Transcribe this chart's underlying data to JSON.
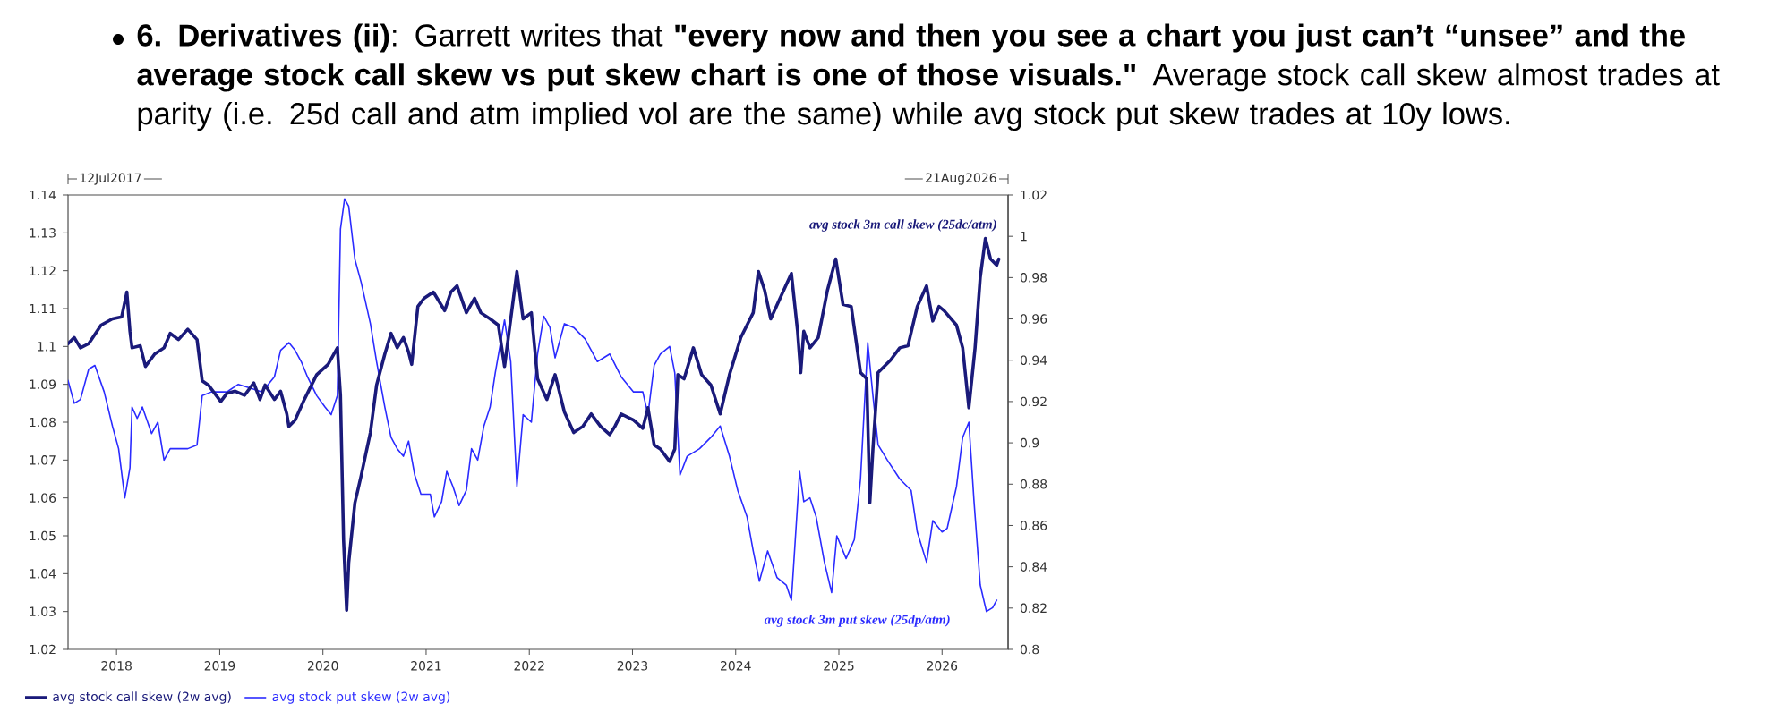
{
  "chart_data": {
    "type": "line",
    "title": "**6. Derivatives (ii)**: Garrett writes that **\"every now and then you see a chart you just can’t “unsee” and the average stock call skew vs put skew chart is one of those visuals.\"** Average stock call skew almost trades at parity (i.e. 25d call and atm implied vol are the same) while avg stock put skew trades at 10y lows.",
    "xlim": [
      2017.53,
      2026.64
    ],
    "xticks": [
      2018,
      2019,
      2020,
      2021,
      2022,
      2023,
      2024,
      2025,
      2026
    ],
    "ylim": [
      1.02,
      1.14
    ],
    "yticks": [
      1.02,
      1.03,
      1.04,
      1.05,
      1.06,
      1.07,
      1.08,
      1.09,
      1.1,
      1.11,
      1.12,
      1.13,
      1.14
    ],
    "y2lim": [
      0.8,
      1.02
    ],
    "y2ticks": [
      0.8,
      0.82,
      0.84,
      0.86,
      0.88,
      0.9,
      0.92,
      0.94,
      0.96,
      0.98,
      1,
      1.02
    ],
    "legend": "bottom",
    "annotations": [
      "12Jul2017",
      "21Aug2026",
      "avg stock 3m call skew (25dc/atm)",
      "avg stock 3m put skew (25dp/atm)"
    ],
    "series": [
      {
        "name": "avg stock call skew (2w avg)",
        "color": "#1a1a7a",
        "axis": "y2",
        "x": [
          2017.53,
          2017.59,
          2017.65,
          2017.73,
          2017.85,
          2017.96,
          2018.05,
          2018.1,
          2018.13,
          2018.15,
          2018.23,
          2018.28,
          2018.37,
          2018.46,
          2018.52,
          2018.6,
          2018.69,
          2018.78,
          2018.83,
          2018.89,
          2019.01,
          2019.07,
          2019.15,
          2019.24,
          2019.33,
          2019.39,
          2019.44,
          2019.53,
          2019.59,
          2019.65,
          2019.67,
          2019.73,
          2019.82,
          2019.94,
          2020.05,
          2020.14,
          2020.17,
          2020.2,
          2020.23,
          2020.25,
          2020.31,
          2020.37,
          2020.46,
          2020.52,
          2020.6,
          2020.66,
          2020.72,
          2020.78,
          2020.83,
          2020.86,
          2020.92,
          2020.98,
          2021.07,
          2021.18,
          2021.24,
          2021.3,
          2021.39,
          2021.47,
          2021.53,
          2021.62,
          2021.7,
          2021.76,
          2021.82,
          2021.88,
          2021.94,
          2022.02,
          2022.08,
          2022.17,
          2022.25,
          2022.34,
          2022.43,
          2022.52,
          2022.6,
          2022.69,
          2022.78,
          2022.83,
          2022.89,
          2023.01,
          2023.1,
          2023.15,
          2023.21,
          2023.27,
          2023.36,
          2023.41,
          2023.44,
          2023.5,
          2023.59,
          2023.67,
          2023.76,
          2023.85,
          2023.94,
          2024.05,
          2024.17,
          2024.22,
          2024.28,
          2024.34,
          2024.43,
          2024.54,
          2024.6,
          2024.63,
          2024.66,
          2024.72,
          2024.8,
          2024.89,
          2024.97,
          2025.04,
          2025.12,
          2025.21,
          2025.27,
          2025.3,
          2025.33,
          2025.38,
          2025.5,
          2025.59,
          2025.67,
          2025.76,
          2025.85,
          2025.91,
          2025.97,
          2026.02,
          2026.14,
          2026.2,
          2026.26,
          2026.32,
          2026.37,
          2026.42,
          2026.47,
          2026.53,
          2026.55
        ],
        "values": [
          0.948,
          0.951,
          0.946,
          0.948,
          0.957,
          0.96,
          0.961,
          0.973,
          0.954,
          0.946,
          0.947,
          0.937,
          0.943,
          0.946,
          0.953,
          0.95,
          0.955,
          0.95,
          0.93,
          0.928,
          0.92,
          0.924,
          0.925,
          0.923,
          0.929,
          0.921,
          0.928,
          0.921,
          0.925,
          0.914,
          0.908,
          0.911,
          0.921,
          0.933,
          0.938,
          0.946,
          0.923,
          0.853,
          0.819,
          0.842,
          0.871,
          0.884,
          0.905,
          0.928,
          0.943,
          0.953,
          0.946,
          0.951,
          0.944,
          0.938,
          0.966,
          0.97,
          0.973,
          0.964,
          0.973,
          0.976,
          0.963,
          0.97,
          0.963,
          0.96,
          0.957,
          0.937,
          0.96,
          0.983,
          0.96,
          0.963,
          0.931,
          0.921,
          0.933,
          0.915,
          0.905,
          0.908,
          0.914,
          0.908,
          0.904,
          0.908,
          0.914,
          0.911,
          0.907,
          0.917,
          0.899,
          0.897,
          0.891,
          0.897,
          0.933,
          0.931,
          0.946,
          0.933,
          0.928,
          0.914,
          0.933,
          0.951,
          0.963,
          0.983,
          0.974,
          0.96,
          0.97,
          0.982,
          0.954,
          0.934,
          0.954,
          0.946,
          0.951,
          0.974,
          0.989,
          0.967,
          0.966,
          0.934,
          0.931,
          0.871,
          0.897,
          0.934,
          0.94,
          0.946,
          0.947,
          0.966,
          0.976,
          0.959,
          0.966,
          0.964,
          0.957,
          0.946,
          0.917,
          0.946,
          0.98,
          0.999,
          0.989,
          0.986,
          0.989
        ]
      },
      {
        "name": "avg stock put skew (2w avg)",
        "color": "#2b2bff",
        "x": [
          2017.53,
          2017.59,
          2017.65,
          2017.73,
          2017.79,
          2017.88,
          2017.96,
          2018.02,
          2018.08,
          2018.13,
          2018.15,
          2018.2,
          2018.25,
          2018.34,
          2018.4,
          2018.46,
          2018.52,
          2018.6,
          2018.69,
          2018.78,
          2018.83,
          2018.92,
          2019.07,
          2019.18,
          2019.3,
          2019.41,
          2019.53,
          2019.59,
          2019.67,
          2019.73,
          2019.79,
          2019.85,
          2019.94,
          2020.02,
          2020.08,
          2020.14,
          2020.17,
          2020.21,
          2020.25,
          2020.31,
          2020.37,
          2020.46,
          2020.52,
          2020.6,
          2020.66,
          2020.72,
          2020.78,
          2020.83,
          2020.89,
          2020.95,
          2021.04,
          2021.08,
          2021.15,
          2021.2,
          2021.26,
          2021.32,
          2021.39,
          2021.44,
          2021.5,
          2021.56,
          2021.62,
          2021.67,
          2021.76,
          2021.82,
          2021.88,
          2021.94,
          2022.02,
          2022.08,
          2022.14,
          2022.2,
          2022.25,
          2022.34,
          2022.43,
          2022.54,
          2022.66,
          2022.78,
          2022.89,
          2023.01,
          2023.1,
          2023.15,
          2023.21,
          2023.27,
          2023.36,
          2023.41,
          2023.46,
          2023.53,
          2023.65,
          2023.76,
          2023.85,
          2023.94,
          2024.02,
          2024.11,
          2024.17,
          2024.23,
          2024.31,
          2024.4,
          2024.49,
          2024.54,
          2024.62,
          2024.66,
          2024.72,
          2024.78,
          2024.86,
          2024.93,
          2024.98,
          2025.07,
          2025.15,
          2025.21,
          2025.28,
          2025.33,
          2025.38,
          2025.47,
          2025.59,
          2025.7,
          2025.76,
          2025.85,
          2025.91,
          2026.0,
          2026.05,
          2026.14,
          2026.2,
          2026.26,
          2026.31,
          2026.37,
          2026.43,
          2026.49,
          2026.53
        ],
        "values": [
          1.091,
          1.085,
          1.086,
          1.094,
          1.095,
          1.088,
          1.079,
          1.073,
          1.06,
          1.068,
          1.084,
          1.081,
          1.084,
          1.077,
          1.08,
          1.07,
          1.073,
          1.073,
          1.073,
          1.074,
          1.087,
          1.088,
          1.088,
          1.09,
          1.089,
          1.088,
          1.092,
          1.099,
          1.101,
          1.099,
          1.096,
          1.092,
          1.087,
          1.084,
          1.082,
          1.087,
          1.131,
          1.139,
          1.137,
          1.123,
          1.117,
          1.106,
          1.096,
          1.084,
          1.076,
          1.073,
          1.071,
          1.075,
          1.066,
          1.061,
          1.061,
          1.055,
          1.059,
          1.067,
          1.063,
          1.058,
          1.062,
          1.073,
          1.07,
          1.079,
          1.084,
          1.093,
          1.107,
          1.096,
          1.063,
          1.082,
          1.08,
          1.098,
          1.108,
          1.105,
          1.097,
          1.106,
          1.105,
          1.102,
          1.096,
          1.098,
          1.092,
          1.088,
          1.088,
          1.082,
          1.095,
          1.098,
          1.1,
          1.093,
          1.066,
          1.071,
          1.073,
          1.076,
          1.079,
          1.071,
          1.062,
          1.055,
          1.046,
          1.038,
          1.046,
          1.039,
          1.037,
          1.033,
          1.067,
          1.059,
          1.06,
          1.055,
          1.043,
          1.035,
          1.05,
          1.044,
          1.049,
          1.065,
          1.101,
          1.087,
          1.074,
          1.07,
          1.065,
          1.062,
          1.051,
          1.043,
          1.054,
          1.051,
          1.052,
          1.063,
          1.076,
          1.08,
          1.059,
          1.037,
          1.03,
          1.031,
          1.033
        ]
      }
    ]
  }
}
